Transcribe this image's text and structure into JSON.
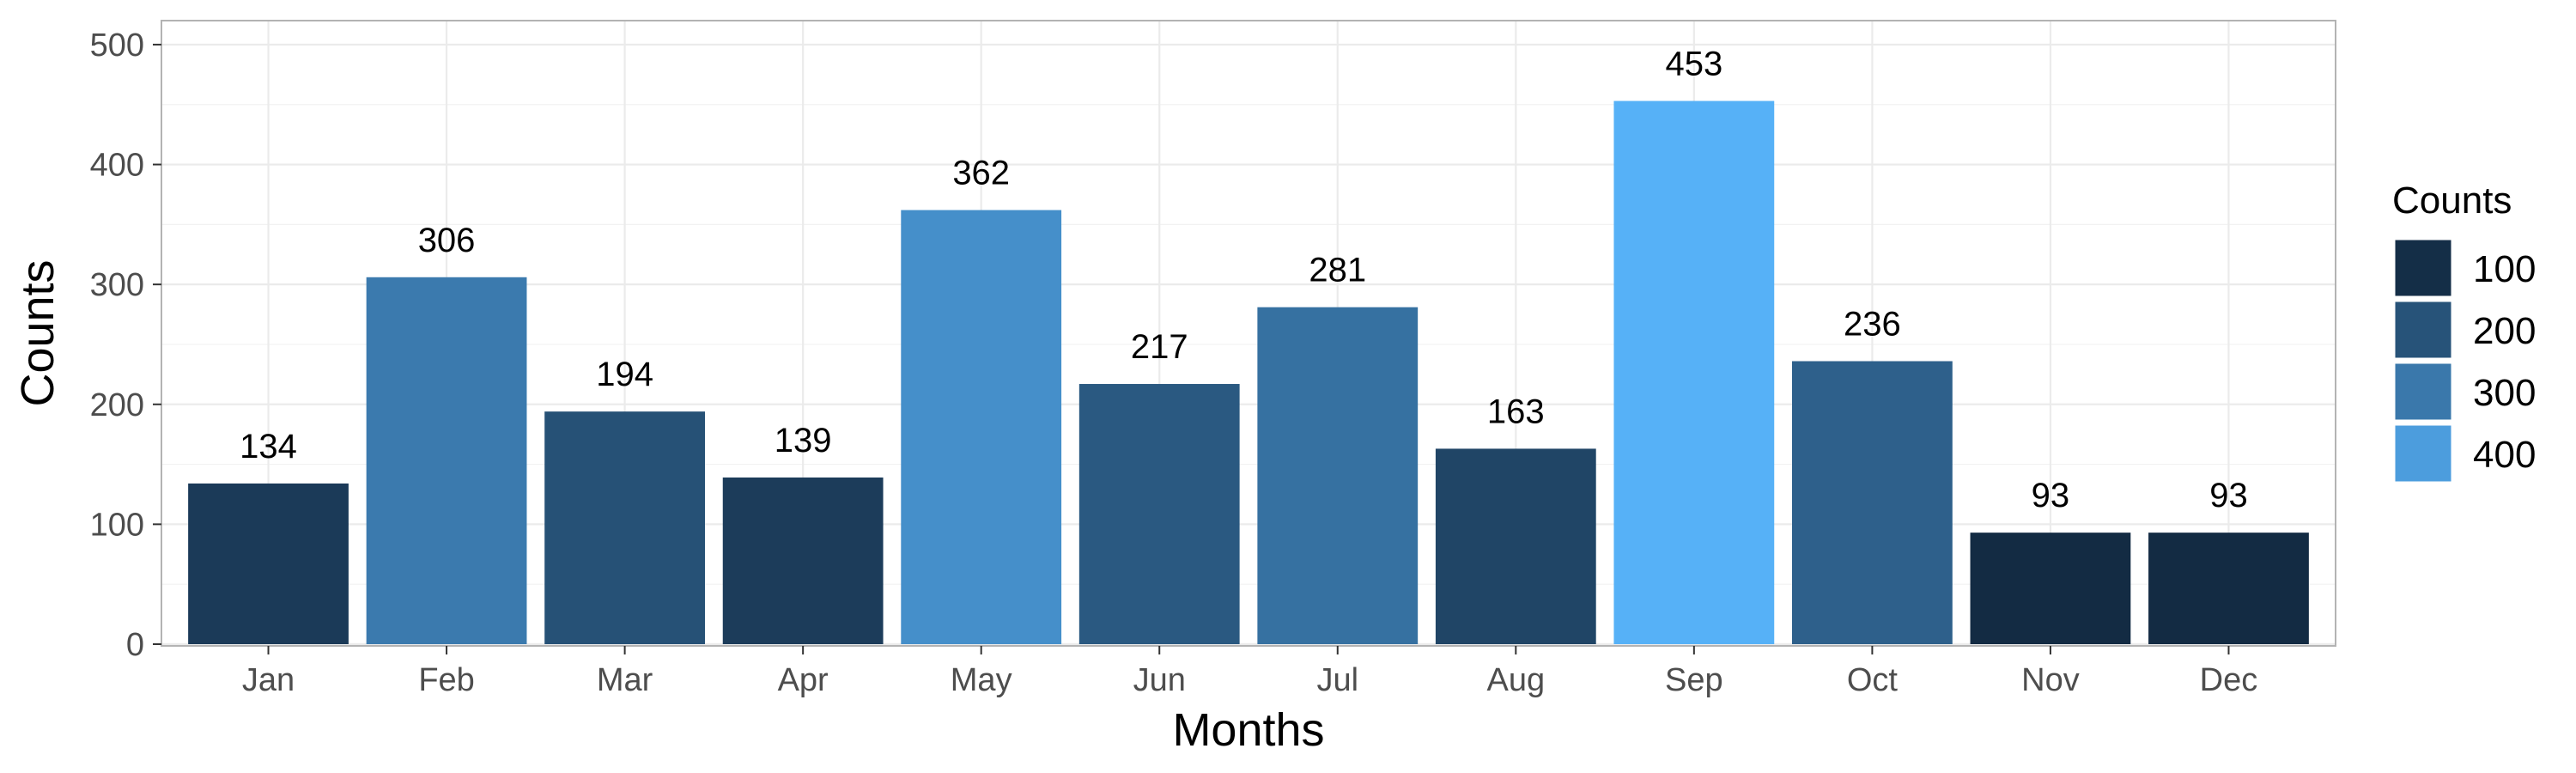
{
  "chart_data": {
    "type": "bar",
    "categories": [
      "Jan",
      "Feb",
      "Mar",
      "Apr",
      "May",
      "Jun",
      "Jul",
      "Aug",
      "Sep",
      "Oct",
      "Nov",
      "Dec"
    ],
    "values": [
      134,
      306,
      194,
      139,
      362,
      217,
      281,
      163,
      453,
      236,
      93,
      93
    ],
    "xlabel": "Months",
    "ylabel": "Counts",
    "ylim": [
      0,
      520
    ],
    "yticks": [
      0,
      100,
      200,
      300,
      400,
      500
    ],
    "grid": true,
    "show_data_labels": true,
    "color_scale": {
      "low_color": "#132B43",
      "high_color": "#56B1F7",
      "range": [
        93,
        453
      ]
    },
    "legend": {
      "title": "Counts",
      "position": "right",
      "breaks": [
        100,
        200,
        300,
        400
      ]
    }
  }
}
